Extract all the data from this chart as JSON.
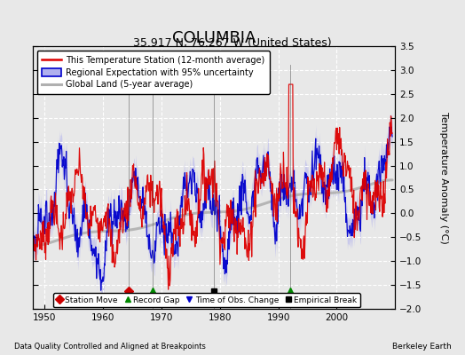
{
  "title": "COLUMBIA",
  "subtitle": "35.917 N, 76.267 W (United States)",
  "ylabel": "Temperature Anomaly (°C)",
  "xlabel_bottom_left": "Data Quality Controlled and Aligned at Breakpoints",
  "xlabel_bottom_right": "Berkeley Earth",
  "xlim": [
    1948,
    2010
  ],
  "ylim": [
    -2.0,
    3.5
  ],
  "yticks": [
    -2,
    -1.5,
    -1,
    -0.5,
    0,
    0.5,
    1,
    1.5,
    2,
    2.5,
    3,
    3.5
  ],
  "xticks": [
    1950,
    1960,
    1970,
    1980,
    1990,
    2000
  ],
  "background_color": "#e8e8e8",
  "plot_bg_color": "#e8e8e8",
  "grid_color": "#ffffff",
  "title_fontsize": 13,
  "subtitle_fontsize": 9,
  "red_line_color": "#dd0000",
  "blue_line_color": "#0000cc",
  "blue_fill_color": "#b0b0ee",
  "gray_line_color": "#b0b0b0",
  "legend_items": [
    "This Temperature Station (12-month average)",
    "Regional Expectation with 95% uncertainty",
    "Global Land (5-year average)"
  ],
  "events": {
    "station_move": {
      "x": 1964.5,
      "marker": "D",
      "color": "#cc0000",
      "size": 5
    },
    "record_gap": {
      "x": 1968.5,
      "marker": "^",
      "color": "#008800",
      "size": 6
    },
    "time_obs": {
      "x": 1979.0,
      "marker": "v",
      "color": "#0000cc",
      "size": 6
    },
    "empirical_break": {
      "x": 1979.0,
      "marker": "s",
      "color": "#000000",
      "size": 5
    },
    "record_gap2": {
      "x": 1992.0,
      "marker": "^",
      "color": "#008800",
      "size": 6
    }
  },
  "vertical_lines": [
    1964.5,
    1968.5,
    1979.0,
    1992.0
  ],
  "bottom_legend": [
    {
      "marker": "D",
      "color": "#cc0000",
      "label": "Station Move"
    },
    {
      "marker": "^",
      "color": "#008800",
      "label": "Record Gap"
    },
    {
      "marker": "v",
      "color": "#0000cc",
      "label": "Time of Obs. Change"
    },
    {
      "marker": "s",
      "color": "#000000",
      "label": "Empirical Break"
    }
  ]
}
